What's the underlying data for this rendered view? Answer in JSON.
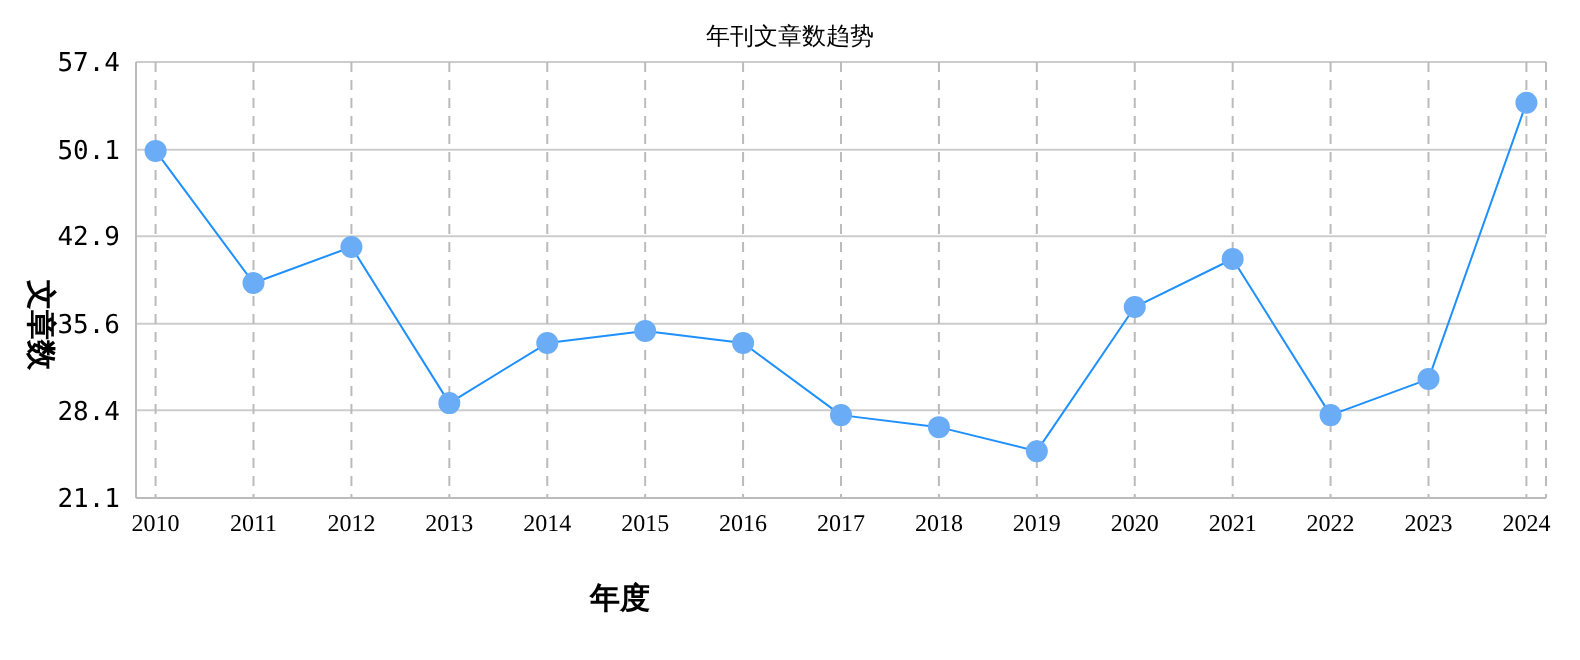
{
  "chart_data": {
    "type": "line",
    "title": "年刊文章数趋势",
    "xlabel": "年度",
    "ylabel": "文章数",
    "categories": [
      "2010",
      "2011",
      "2012",
      "2013",
      "2014",
      "2015",
      "2016",
      "2017",
      "2018",
      "2019",
      "2020",
      "2021",
      "2022",
      "2023",
      "2024"
    ],
    "series": [
      {
        "color": "#1e90ff",
        "values": [
          50,
          39,
          42,
          29,
          34,
          35,
          34,
          28,
          27,
          25,
          37,
          41,
          28,
          31,
          54
        ]
      }
    ],
    "marker": "circle",
    "ylim": [
      21.1,
      57.4
    ],
    "yticks": [
      21.1,
      28.4,
      35.6,
      42.9,
      50.1,
      57.4
    ],
    "grid": true,
    "legend": false
  }
}
